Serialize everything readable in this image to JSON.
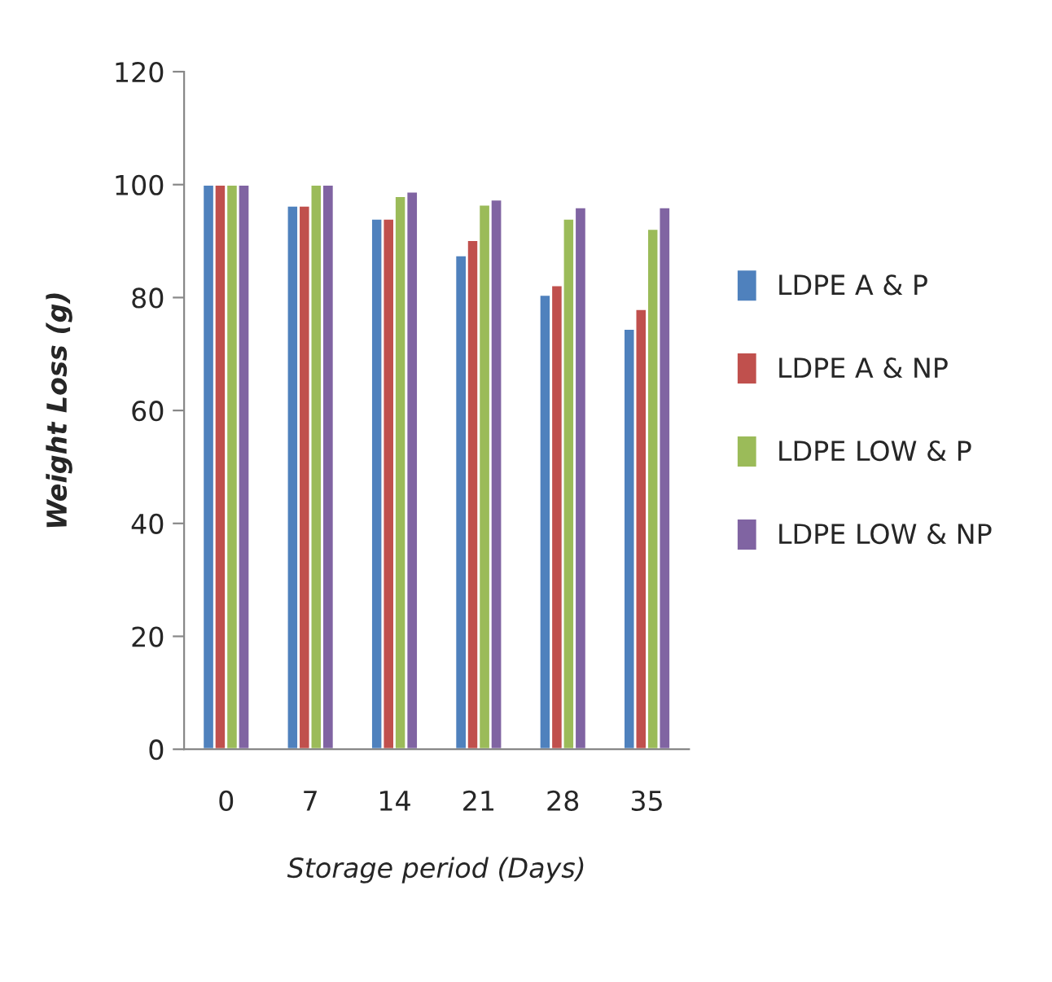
{
  "chart_data": {
    "type": "bar",
    "xlabel": "Storage period (Days)",
    "ylabel": "Weight Loss (g)",
    "categories": [
      "0",
      "7",
      "14",
      "21",
      "28",
      "35"
    ],
    "series": [
      {
        "name": "LDPE A & P",
        "color": "#4f81bd",
        "values": [
          100,
          96.3,
          94,
          87.5,
          80.5,
          74.5
        ]
      },
      {
        "name": "LDPE A & NP",
        "color": "#c0504d",
        "values": [
          100,
          96.3,
          94,
          90.2,
          82.2,
          78
        ]
      },
      {
        "name": "LDPE LOW & P",
        "color": "#9bbb59",
        "values": [
          100,
          100,
          98,
          96.5,
          94,
          92.2
        ]
      },
      {
        "name": "LDPE LOW & NP",
        "color": "#8064a2",
        "values": [
          100,
          100,
          98.8,
          97.4,
          96,
          96
        ]
      }
    ],
    "ylim": [
      0,
      120
    ],
    "yticks": [
      0,
      20,
      40,
      60,
      80,
      100,
      120
    ],
    "grid": false,
    "legend": "right"
  }
}
